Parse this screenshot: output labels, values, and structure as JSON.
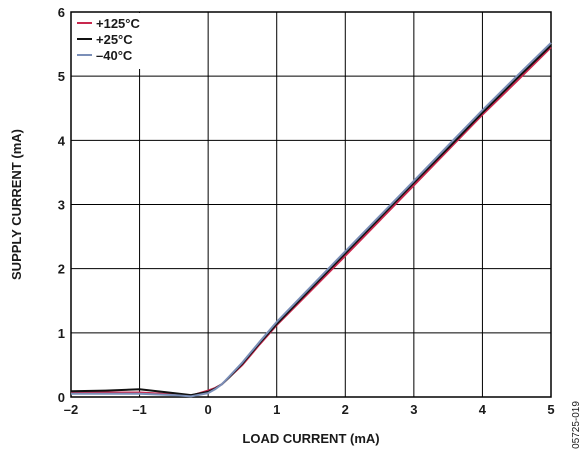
{
  "chart_data": {
    "type": "line",
    "title": "",
    "xlabel": "LOAD CURRENT (mA)",
    "ylabel": "SUPPLY CURRENT (mA)",
    "xlim": [
      -2,
      5
    ],
    "ylim": [
      0,
      6
    ],
    "x_ticks": [
      -2,
      -1,
      0,
      1,
      2,
      3,
      4,
      5
    ],
    "x_tick_labels": [
      "–2",
      "–1",
      "0",
      "1",
      "2",
      "3",
      "4",
      "5"
    ],
    "y_ticks": [
      0,
      1,
      2,
      3,
      4,
      5,
      6
    ],
    "y_tick_labels": [
      "0",
      "1",
      "2",
      "3",
      "4",
      "5",
      "6"
    ],
    "grid": true,
    "legend_position": "top-left",
    "series": [
      {
        "name": "+125°C",
        "color": "#c8284e",
        "x": [
          -2,
          -1.5,
          -1,
          -0.5,
          -0.25,
          0,
          0.1,
          0.2,
          0.3,
          0.5,
          0.75,
          1,
          1.5,
          2,
          2.5,
          3,
          3.5,
          4,
          4.5,
          5
        ],
        "y": [
          0.07,
          0.07,
          0.07,
          0.04,
          0.02,
          0.1,
          0.14,
          0.2,
          0.3,
          0.5,
          0.82,
          1.12,
          1.66,
          2.2,
          2.75,
          3.3,
          3.85,
          4.4,
          4.92,
          5.45
        ]
      },
      {
        "name": "+25°C",
        "color": "#111111",
        "x": [
          -2,
          -1.5,
          -1,
          -0.5,
          -0.25,
          0,
          0.1,
          0.2,
          0.3,
          0.5,
          0.75,
          1,
          1.5,
          2,
          2.5,
          3,
          3.5,
          4,
          4.5,
          5
        ],
        "y": [
          0.09,
          0.1,
          0.12,
          0.06,
          0.03,
          0.08,
          0.13,
          0.2,
          0.3,
          0.52,
          0.84,
          1.14,
          1.69,
          2.24,
          2.79,
          3.34,
          3.88,
          4.43,
          4.96,
          5.48
        ]
      },
      {
        "name": "–40°C",
        "color": "#7b8fb8",
        "x": [
          -2,
          -1.5,
          -1,
          -0.5,
          -0.25,
          0,
          0.1,
          0.2,
          0.3,
          0.5,
          0.75,
          1,
          1.5,
          2,
          2.5,
          3,
          3.5,
          4,
          4.5,
          5
        ],
        "y": [
          0.05,
          0.05,
          0.05,
          0.03,
          0.01,
          0.06,
          0.12,
          0.2,
          0.31,
          0.54,
          0.86,
          1.17,
          1.72,
          2.27,
          2.82,
          3.37,
          3.92,
          4.47,
          5.0,
          5.52
        ]
      }
    ]
  },
  "figure_code": "05725-019"
}
